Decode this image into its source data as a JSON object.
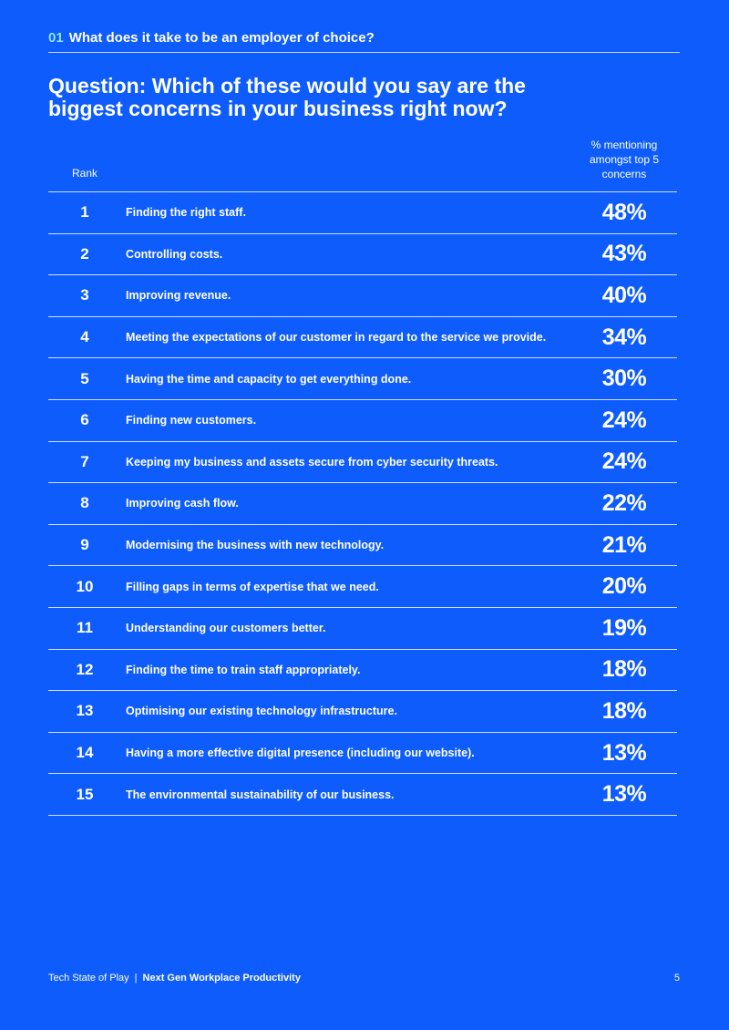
{
  "header": {
    "section_number": "01",
    "section_title": "What does it take to be an employer of choice?"
  },
  "question": {
    "line1": "Question: Which of these would you say are the",
    "line2": "biggest concerns in your business right now?"
  },
  "table": {
    "rank_header": "Rank",
    "pct_header": {
      "line1": "% mentioning",
      "line2": "amongst top 5",
      "line3": "concerns"
    },
    "rows": [
      {
        "rank": "1",
        "label": "Finding the right staff.",
        "pct": "48%"
      },
      {
        "rank": "2",
        "label": "Controlling costs.",
        "pct": "43%"
      },
      {
        "rank": "3",
        "label": "Improving revenue.",
        "pct": "40%"
      },
      {
        "rank": "4",
        "label": "Meeting the expectations of our customer in regard to the service we provide.",
        "pct": "34%"
      },
      {
        "rank": "5",
        "label": "Having the time and capacity to get everything done.",
        "pct": "30%"
      },
      {
        "rank": "6",
        "label": "Finding new customers.",
        "pct": "24%"
      },
      {
        "rank": "7",
        "label": "Keeping my business and assets secure from cyber security threats.",
        "pct": "24%"
      },
      {
        "rank": "8",
        "label": "Improving cash flow.",
        "pct": "22%"
      },
      {
        "rank": "9",
        "label": "Modernising the business with new technology.",
        "pct": "21%"
      },
      {
        "rank": "10",
        "label": "Filling gaps in terms of expertise that we need.",
        "pct": "20%"
      },
      {
        "rank": "11",
        "label": "Understanding our customers better.",
        "pct": "19%"
      },
      {
        "rank": "12",
        "label": "Finding the time to train staff appropriately.",
        "pct": "18%"
      },
      {
        "rank": "13",
        "label": "Optimising our existing technology infrastructure.",
        "pct": "18%"
      },
      {
        "rank": "14",
        "label": "Having a more effective digital presence (including our website).",
        "pct": "13%"
      },
      {
        "rank": "15",
        "label": "The environmental sustainability of our business.",
        "pct": "13%"
      }
    ]
  },
  "footer": {
    "publication": "Tech State of Play",
    "separator": "|",
    "report_title": "Next Gen Workplace Productivity",
    "page_number": "5"
  },
  "colors": {
    "background": "#0D5CFB",
    "text": "#FFFFFF",
    "section_number": "#8FE3F2"
  }
}
